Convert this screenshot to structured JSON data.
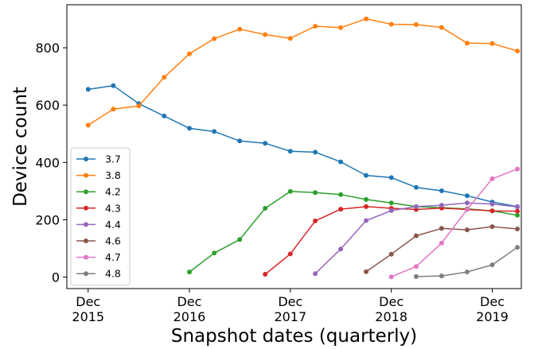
{
  "chart_data": {
    "type": "line",
    "xlabel": "Snapshot dates (quarterly)",
    "ylabel": "Device count",
    "xlim": [
      "2015-09-15",
      "2020-03-15"
    ],
    "ylim": [
      -40,
      950
    ],
    "grid": false,
    "legend_position": "left",
    "x_ticks": [
      {
        "date": "2015-12-01",
        "label": [
          "Dec",
          "2015"
        ]
      },
      {
        "date": "2016-12-01",
        "label": [
          "Dec",
          "2016"
        ]
      },
      {
        "date": "2017-12-01",
        "label": [
          "Dec",
          "2017"
        ]
      },
      {
        "date": "2018-12-01",
        "label": [
          "Dec",
          "2018"
        ]
      },
      {
        "date": "2019-12-01",
        "label": [
          "Dec",
          "2019"
        ]
      }
    ],
    "y_ticks": [
      0,
      200,
      400,
      600,
      800
    ],
    "x": [
      "2015-12-01",
      "2016-03-01",
      "2016-06-01",
      "2016-09-01",
      "2016-12-01",
      "2017-03-01",
      "2017-06-01",
      "2017-09-01",
      "2017-12-01",
      "2018-03-01",
      "2018-06-01",
      "2018-09-01",
      "2018-12-01",
      "2019-03-01",
      "2019-06-01",
      "2019-09-01",
      "2019-12-01",
      "2020-03-01"
    ],
    "series": [
      {
        "name": "3.7",
        "color": "#1f77b4",
        "values": [
          655,
          668,
          605,
          562,
          519,
          508,
          475,
          467,
          439,
          436,
          402,
          355,
          347,
          313,
          301,
          284,
          262,
          246
        ]
      },
      {
        "name": "3.8",
        "color": "#ff7f0e",
        "values": [
          530,
          586,
          597,
          697,
          779,
          832,
          865,
          846,
          833,
          875,
          870,
          901,
          882,
          881,
          871,
          816,
          815,
          789
        ]
      },
      {
        "name": "4.2",
        "color": "#2ca02c",
        "values": [
          null,
          null,
          null,
          null,
          18,
          84,
          131,
          240,
          299,
          295,
          288,
          271,
          259,
          246,
          242,
          238,
          231,
          216
        ]
      },
      {
        "name": "4.3",
        "color": "#d62728",
        "values": [
          null,
          null,
          null,
          null,
          null,
          null,
          null,
          10,
          81,
          196,
          237,
          246,
          240,
          236,
          241,
          236,
          231,
          230
        ]
      },
      {
        "name": "4.4",
        "color": "#9467bd",
        "values": [
          null,
          null,
          null,
          null,
          null,
          null,
          null,
          null,
          null,
          12,
          98,
          197,
          232,
          246,
          251,
          259,
          255,
          245
        ]
      },
      {
        "name": "4.6",
        "color": "#8c564b",
        "values": [
          null,
          null,
          null,
          null,
          null,
          null,
          null,
          null,
          null,
          null,
          null,
          19,
          80,
          144,
          170,
          165,
          176,
          168
        ]
      },
      {
        "name": "4.7",
        "color": "#e377c2",
        "values": [
          null,
          null,
          null,
          null,
          null,
          null,
          null,
          null,
          null,
          null,
          null,
          null,
          1,
          37,
          119,
          236,
          343,
          377
        ]
      },
      {
        "name": "4.8",
        "color": "#7f7f7f",
        "values": [
          null,
          null,
          null,
          null,
          null,
          null,
          null,
          null,
          null,
          null,
          null,
          null,
          null,
          2,
          4,
          18,
          43,
          104
        ]
      }
    ]
  }
}
